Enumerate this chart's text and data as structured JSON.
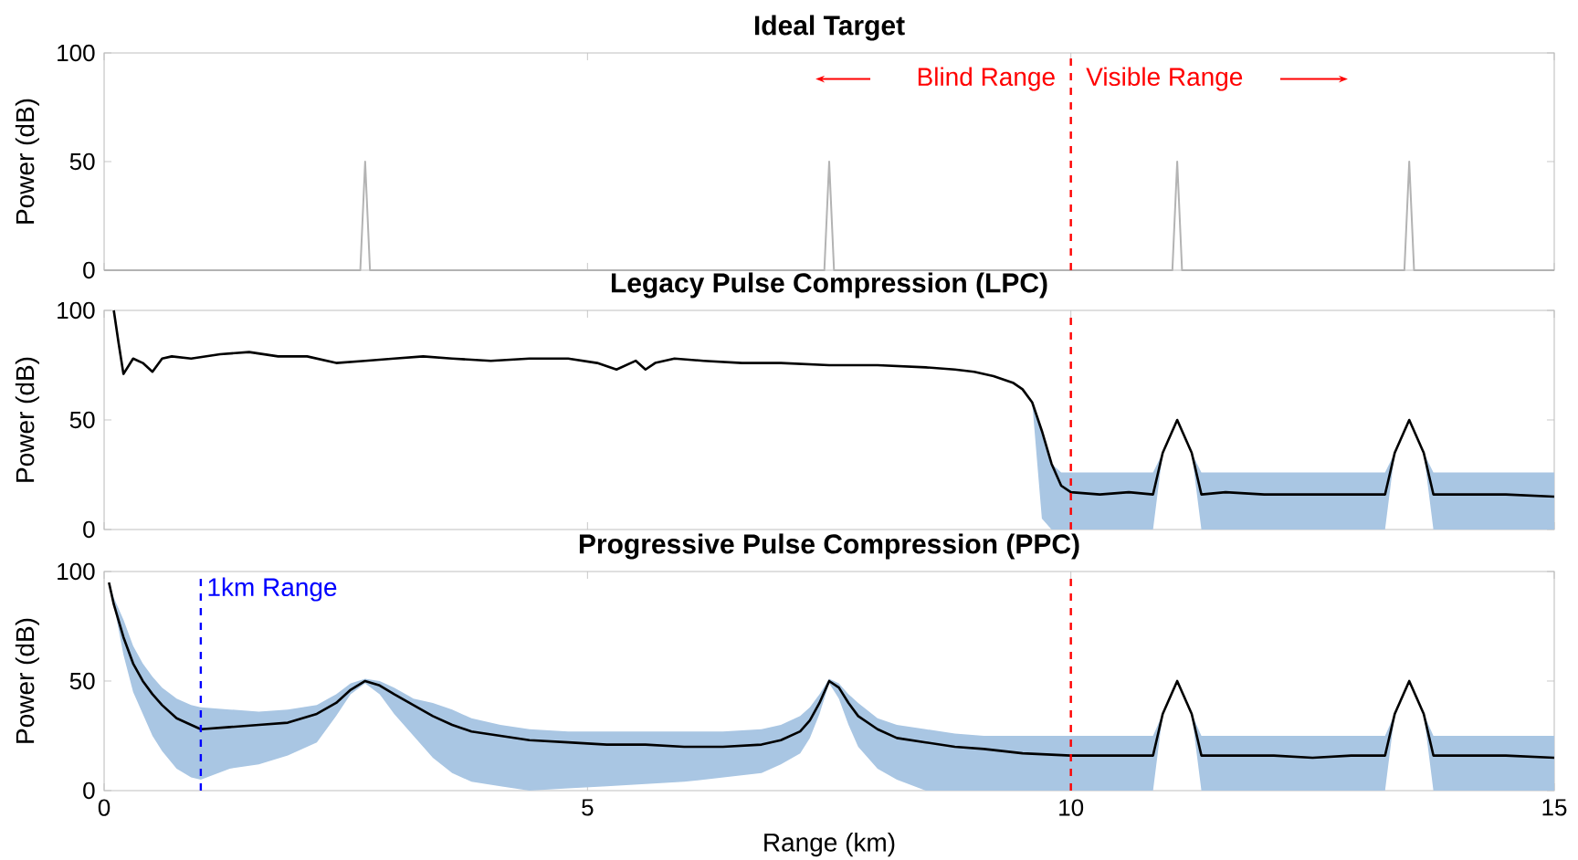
{
  "chart_data": [
    {
      "type": "line",
      "title": "Ideal Target",
      "ylabel": "Power (dB)",
      "xlim": [
        0,
        15
      ],
      "ylim": [
        0,
        100
      ],
      "xticks": [
        0,
        5,
        10,
        15
      ],
      "yticks": [
        0,
        50,
        100
      ],
      "tick_labels": "y",
      "series": [
        {
          "color": "#b3b3b3",
          "x": [
            0,
            2.65,
            2.7,
            2.75,
            7.45,
            7.5,
            7.55,
            11.05,
            11.1,
            11.15,
            13.45,
            13.5,
            13.55,
            15
          ],
          "values": [
            0,
            0,
            50,
            0,
            0,
            50,
            0,
            0,
            50,
            0,
            0,
            50,
            0,
            0
          ]
        }
      ],
      "ref_lines": [
        {
          "axis": "x",
          "value": 10,
          "color": "#ff0000",
          "line_style": "dashed"
        }
      ],
      "annotations": [
        "Blind Range",
        "Visible Range"
      ]
    },
    {
      "type": "line",
      "title": "Legacy Pulse Compression (LPC)",
      "ylabel": "Power (dB)",
      "xlim": [
        0,
        15
      ],
      "ylim": [
        0,
        100
      ],
      "xticks": [
        0,
        5,
        10,
        15
      ],
      "yticks": [
        0,
        50,
        100
      ],
      "tick_labels": "y",
      "series": [
        {
          "color": "#000000",
          "x": [
            0.1,
            0.15,
            0.2,
            0.3,
            0.4,
            0.5,
            0.6,
            0.7,
            0.9,
            1.2,
            1.5,
            1.8,
            2.1,
            2.4,
            2.7,
            3.0,
            3.3,
            3.6,
            4.0,
            4.4,
            4.8,
            5.1,
            5.3,
            5.5,
            5.6,
            5.7,
            5.9,
            6.2,
            6.6,
            7.0,
            7.5,
            8.0,
            8.5,
            8.8,
            9.0,
            9.2,
            9.4,
            9.5,
            9.6,
            9.7,
            9.8,
            9.9,
            10.0,
            10.3,
            10.6,
            10.85,
            10.95,
            11.1,
            11.25,
            11.35,
            11.6,
            12.0,
            12.4,
            12.8,
            13.25,
            13.35,
            13.5,
            13.65,
            13.75,
            14.0,
            14.5,
            15.0
          ],
          "values": [
            100,
            85,
            71,
            78,
            76,
            72,
            78,
            79,
            78,
            80,
            81,
            79,
            79,
            76,
            77,
            78,
            79,
            78,
            77,
            78,
            78,
            76,
            73,
            77,
            73,
            76,
            78,
            77,
            76,
            76,
            75,
            75,
            74,
            73,
            72,
            70,
            67,
            64,
            58,
            45,
            30,
            20,
            17,
            16,
            17,
            16,
            35,
            50,
            35,
            16,
            17,
            16,
            16,
            16,
            16,
            35,
            50,
            35,
            16,
            16,
            16,
            15
          ],
          "lower": [
            100,
            85,
            71,
            78,
            76,
            72,
            78,
            79,
            78,
            80,
            81,
            79,
            79,
            76,
            77,
            78,
            79,
            78,
            77,
            78,
            78,
            76,
            73,
            77,
            73,
            76,
            78,
            77,
            76,
            76,
            75,
            75,
            74,
            73,
            72,
            70,
            67,
            64,
            58,
            5,
            0,
            0,
            0,
            0,
            0,
            0,
            35,
            50,
            35,
            0,
            0,
            0,
            0,
            0,
            0,
            35,
            50,
            35,
            0,
            0,
            0,
            0
          ],
          "upper": [
            100,
            85,
            71,
            78,
            76,
            72,
            78,
            79,
            78,
            80,
            81,
            79,
            79,
            76,
            77,
            78,
            79,
            78,
            77,
            78,
            78,
            76,
            73,
            77,
            73,
            76,
            78,
            77,
            76,
            76,
            75,
            75,
            74,
            73,
            72,
            70,
            67,
            64,
            58,
            45,
            30,
            26,
            26,
            26,
            26,
            26,
            35,
            50,
            35,
            26,
            26,
            26,
            26,
            26,
            26,
            35,
            50,
            35,
            26,
            26,
            26,
            26
          ]
        }
      ],
      "ref_lines": [
        {
          "axis": "x",
          "value": 10,
          "color": "#ff0000",
          "line_style": "dashed"
        }
      ]
    },
    {
      "type": "line",
      "title": "Progressive Pulse Compression (PPC)",
      "xlabel": "Range (km)",
      "ylabel": "Power (dB)",
      "xlim": [
        0,
        15
      ],
      "ylim": [
        0,
        100
      ],
      "xticks": [
        0,
        5,
        10,
        15
      ],
      "yticks": [
        0,
        50,
        100
      ],
      "series": [
        {
          "color": "#000000",
          "x": [
            0.05,
            0.1,
            0.2,
            0.3,
            0.4,
            0.5,
            0.6,
            0.75,
            0.9,
            1.0,
            1.3,
            1.6,
            1.9,
            2.2,
            2.4,
            2.55,
            2.7,
            2.85,
            3.0,
            3.2,
            3.4,
            3.6,
            3.8,
            4.1,
            4.4,
            4.8,
            5.2,
            5.6,
            6.0,
            6.4,
            6.8,
            7.0,
            7.2,
            7.3,
            7.4,
            7.5,
            7.6,
            7.7,
            7.8,
            8.0,
            8.2,
            8.5,
            8.8,
            9.1,
            9.5,
            10.0,
            10.4,
            10.85,
            10.95,
            11.1,
            11.25,
            11.35,
            11.7,
            12.1,
            12.5,
            12.9,
            13.25,
            13.35,
            13.5,
            13.65,
            13.75,
            14.1,
            14.5,
            15.0
          ],
          "values": [
            95,
            85,
            70,
            58,
            50,
            44,
            39,
            33,
            30,
            28,
            29,
            30,
            31,
            35,
            40,
            46,
            50,
            48,
            44,
            39,
            34,
            30,
            27,
            25,
            23,
            22,
            21,
            21,
            20,
            20,
            21,
            23,
            27,
            32,
            40,
            50,
            47,
            40,
            34,
            28,
            24,
            22,
            20,
            19,
            17,
            16,
            16,
            16,
            35,
            50,
            35,
            16,
            16,
            16,
            15,
            16,
            16,
            35,
            50,
            35,
            16,
            16,
            16,
            15
          ],
          "lower": [
            95,
            85,
            62,
            45,
            35,
            25,
            18,
            10,
            6,
            5,
            10,
            12,
            16,
            22,
            34,
            44,
            49,
            44,
            35,
            25,
            15,
            8,
            4,
            2,
            0,
            1,
            2,
            3,
            4,
            6,
            8,
            12,
            17,
            24,
            35,
            49,
            42,
            30,
            20,
            10,
            5,
            0,
            0,
            0,
            0,
            0,
            0,
            0,
            35,
            50,
            35,
            0,
            0,
            0,
            0,
            0,
            0,
            35,
            50,
            35,
            0,
            0,
            0,
            0
          ],
          "upper": [
            95,
            88,
            78,
            66,
            58,
            52,
            47,
            42,
            39,
            38,
            37,
            36,
            37,
            39,
            44,
            49,
            51,
            50,
            47,
            42,
            40,
            37,
            33,
            30,
            28,
            27,
            27,
            27,
            27,
            27,
            28,
            30,
            34,
            38,
            44,
            51,
            49,
            44,
            40,
            33,
            30,
            28,
            26,
            25,
            25,
            25,
            25,
            25,
            35,
            50,
            35,
            25,
            25,
            25,
            25,
            25,
            25,
            35,
            50,
            35,
            25,
            25,
            25,
            25
          ]
        }
      ],
      "ref_lines": [
        {
          "axis": "x",
          "value": 1,
          "label": "1km Range",
          "color": "#0000ff",
          "line_style": "dashed"
        },
        {
          "axis": "x",
          "value": 10,
          "color": "#ff0000",
          "line_style": "dashed"
        }
      ]
    }
  ]
}
